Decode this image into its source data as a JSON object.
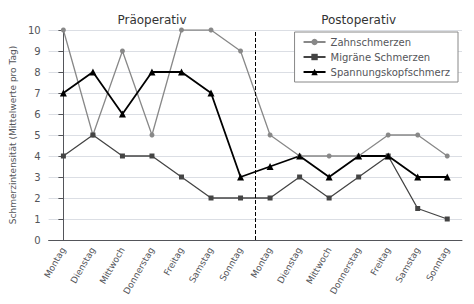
{
  "chart_data": {
    "type": "line",
    "categories": [
      "Montag",
      "Dienstag",
      "Mittwoch",
      "Donnerstag",
      "Freitag",
      "Samstag",
      "Sonntag",
      "Montag",
      "Dienstag",
      "Mittwoch",
      "Donnerstag",
      "Freitag",
      "Samstag",
      "Sonntag"
    ],
    "series": [
      {
        "name": "Zahnschmerzen",
        "color": "#888888",
        "marker": "circle",
        "values": [
          10,
          5,
          9,
          5,
          10,
          10,
          9,
          5,
          4,
          4,
          4,
          5,
          5,
          4
        ]
      },
      {
        "name": "Migräne Schmerzen",
        "color": "#444444",
        "marker": "square",
        "values": [
          4,
          5,
          4,
          4,
          3,
          2,
          2,
          2,
          3,
          2,
          3,
          4,
          1.5,
          1
        ]
      },
      {
        "name": "Spannungskopfschmerz",
        "color": "#000000",
        "marker": "triangle",
        "values": [
          7,
          8,
          6,
          8,
          8,
          7,
          3,
          3.5,
          4,
          3,
          4,
          4,
          3,
          3
        ]
      }
    ],
    "y_label": "Schmerzintensität (Mittelwerte pro Tag)",
    "ylim": [
      0,
      10
    ],
    "yticks": [
      0,
      1,
      2,
      3,
      4,
      5,
      6,
      7,
      8,
      9,
      10
    ],
    "vline_x": 6.5,
    "annotations": [
      {
        "text": "Präoperativ",
        "x": 3
      },
      {
        "text": "Postoperativ",
        "x": 10
      }
    ],
    "grid": true,
    "legend": "upper right"
  }
}
